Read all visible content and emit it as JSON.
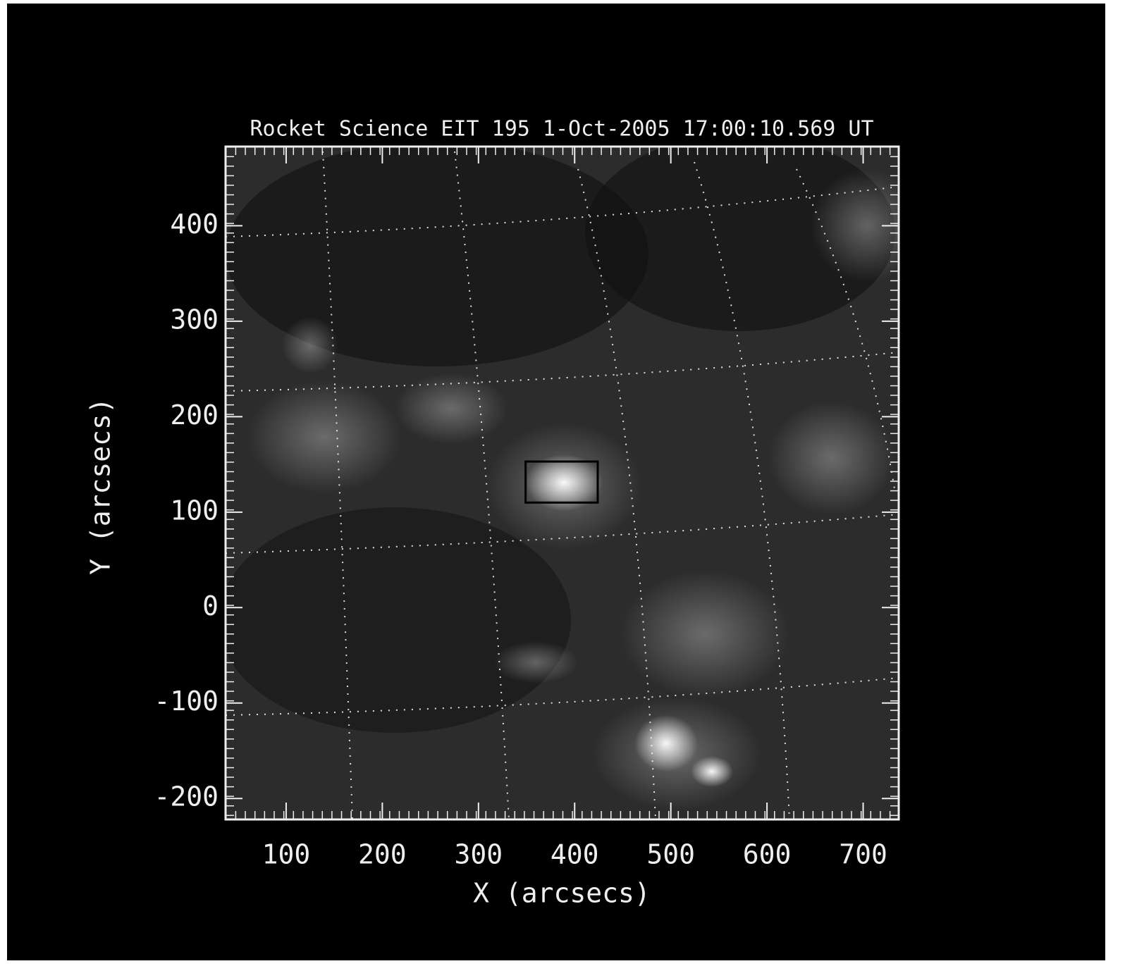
{
  "chart_data": {
    "type": "image",
    "title": "Rocket Science EIT 195  1-Oct-2005 17:00:10.569 UT",
    "x_label": "X (arcsecs)",
    "y_label": "Y (arcsecs)",
    "xlim": [
      37,
      737
    ],
    "ylim": [
      -222,
      483
    ],
    "xticks": [
      100,
      200,
      300,
      400,
      500,
      600,
      700
    ],
    "yticks": [
      -200,
      -100,
      0,
      100,
      200,
      300,
      400
    ],
    "box": {
      "x": [
        349,
        424
      ],
      "y": [
        110,
        153
      ],
      "color": "#000000"
    }
  }
}
